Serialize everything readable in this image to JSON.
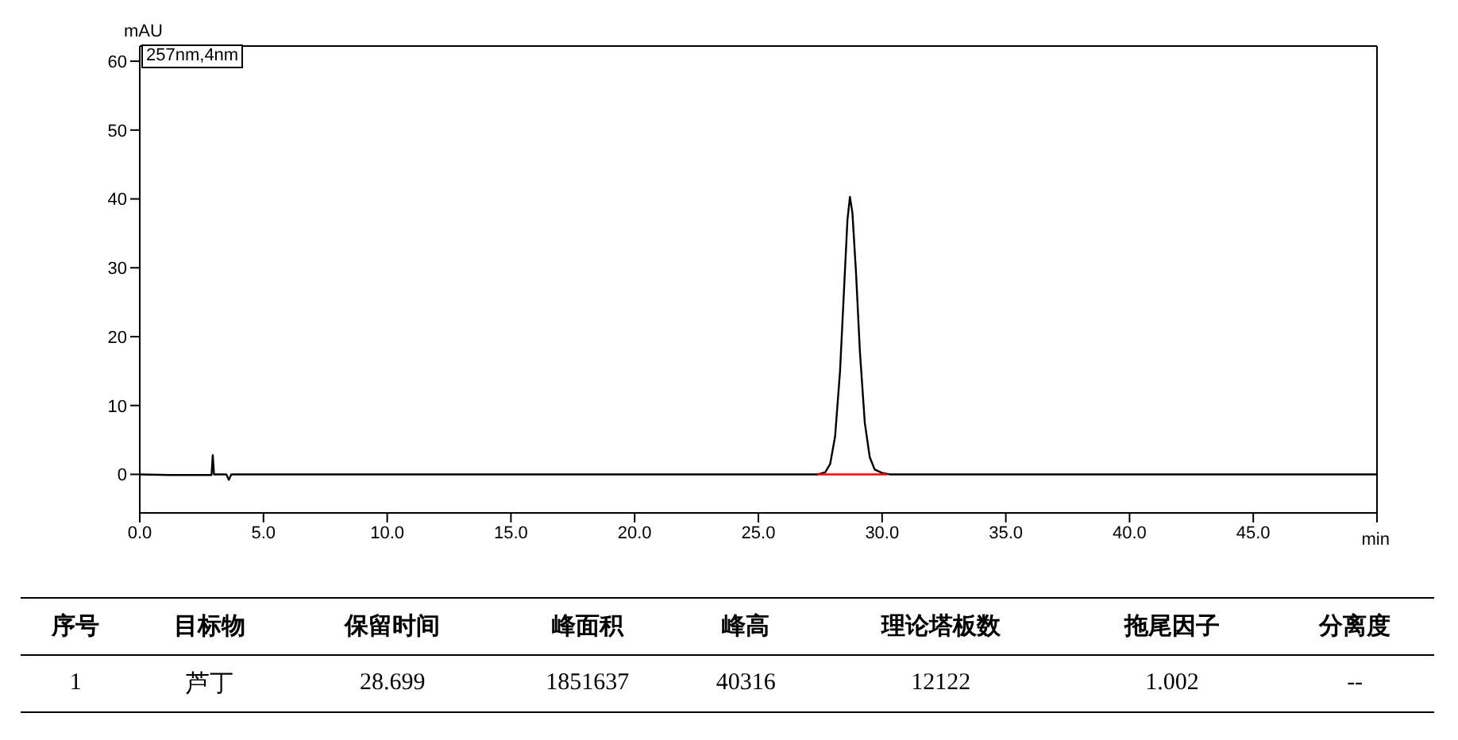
{
  "chart_data": {
    "type": "line",
    "xlabel": "min",
    "ylabel": "mAU",
    "xlim": [
      0,
      50
    ],
    "ylim": [
      -5.6,
      62.2
    ],
    "xticks": [
      {
        "value": 0,
        "label": "0.0"
      },
      {
        "value": 5,
        "label": "5.0"
      },
      {
        "value": 10,
        "label": "10.0"
      },
      {
        "value": 15,
        "label": "15.0"
      },
      {
        "value": 20,
        "label": "20.0"
      },
      {
        "value": 25,
        "label": "25.0"
      },
      {
        "value": 30,
        "label": "30.0"
      },
      {
        "value": 35,
        "label": "35.0"
      },
      {
        "value": 40,
        "label": "40.0"
      },
      {
        "value": 45,
        "label": "45.0"
      },
      {
        "value": 50,
        "label": null
      }
    ],
    "yticks": [
      0,
      10,
      20,
      30,
      40,
      50,
      60
    ],
    "marker": "none",
    "line_style": "solid",
    "series": [
      {
        "color": "#000000",
        "x": [
          0,
          1.2,
          2.9,
          2.95,
          3.0,
          3.5,
          3.6,
          3.7,
          10,
          20,
          27.4,
          27.7,
          27.9,
          28.1,
          28.3,
          28.45,
          28.6,
          28.7,
          28.8,
          28.95,
          29.1,
          29.3,
          29.5,
          29.7,
          30.0,
          30.3,
          40,
          50
        ],
        "values": [
          0,
          -0.1,
          -0.1,
          2.8,
          0,
          0,
          -0.8,
          0,
          0,
          0,
          0,
          0.3,
          1.5,
          5.5,
          15,
          26,
          37,
          40.3,
          38,
          29,
          18,
          7.5,
          2.5,
          0.7,
          0.2,
          0,
          0,
          0
        ]
      },
      {
        "color": "#ff0000",
        "x": [
          27.4,
          30.2
        ],
        "values": [
          0,
          0
        ]
      }
    ],
    "annotations": [
      "257nm,4nm",
      "序号",
      "目标物",
      "保留时间",
      "峰面积",
      "峰高",
      "理论塔板数",
      "拖尾因子",
      "分离度",
      "1",
      "芦丁",
      "28.699",
      "1851637",
      "40316",
      "12122",
      "1.002",
      "--"
    ]
  }
}
